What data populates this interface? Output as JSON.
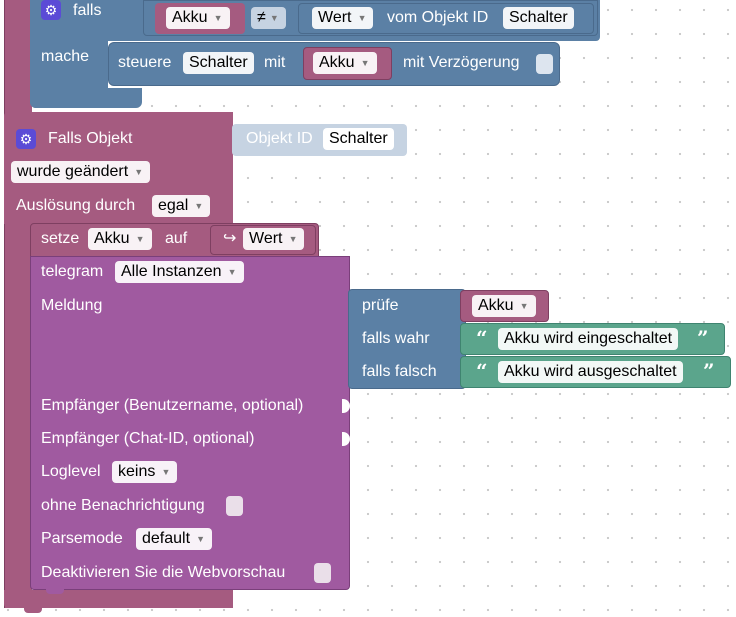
{
  "if_block": {
    "falls_label": "falls",
    "mache_label": "mache",
    "left_var": "Akku",
    "operator": "≠",
    "value_dropdown": "Wert",
    "object_label": "vom Objekt ID",
    "object_id": "Schalter",
    "steuere_label": "steuere",
    "steuere_target": "Schalter",
    "mit_label": "mit",
    "mit_var": "Akku",
    "delay_label": "mit Verzögerung"
  },
  "trigger": {
    "title": "Falls Objekt",
    "object_id_label": "Objekt ID",
    "object_id": "Schalter",
    "changed_dropdown": "wurde geändert",
    "trigger_label": "Auslösung durch",
    "trigger_value": "egal"
  },
  "set_block": {
    "setze_label": "setze",
    "variable": "Akku",
    "auf_label": "auf",
    "value_symbol": "↪",
    "value_dropdown": "Wert"
  },
  "telegram": {
    "label": "telegram",
    "instance": "Alle Instanzen",
    "message_label": "Meldung",
    "recipient_user_label": "Empfänger (Benutzername, optional)",
    "recipient_chat_label": "Empfänger (Chat-ID, optional)",
    "loglevel_label": "Loglevel",
    "loglevel_value": "keins",
    "silent_label": "ohne Benachrichtigung",
    "parsemode_label": "Parsemode",
    "parsemode_value": "default",
    "webpreview_label": "Deaktivieren Sie die Webvorschau"
  },
  "ternary": {
    "check_label": "prüfe",
    "check_var": "Akku",
    "true_label": "falls wahr",
    "true_text": "Akku wird eingeschaltet",
    "false_label": "falls falsch",
    "false_text": "Akku wird ausgeschaltet"
  },
  "colors": {
    "logic": "#5b80a5",
    "trigger": "#a55b80",
    "telegram": "#a05aa0",
    "variable": "#a55b80",
    "text": "#5ba58c",
    "disabled": "#c6d3e2",
    "gear": "#5b4bd6"
  }
}
